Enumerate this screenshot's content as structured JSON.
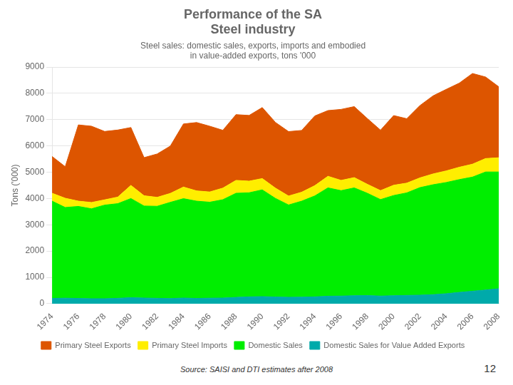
{
  "chart_data": {
    "type": "area",
    "stacked": true,
    "title": "Performance of the SA\nSteel industry",
    "subtitle": "Steel sales: domestic sales, exports, imports and embodied\nin value-added exports, tons '000",
    "ylabel": "Tons ('000)",
    "annotations": [
      "Source: SAISI and DTI estimates after 2008",
      "12"
    ],
    "x": [
      1974,
      1975,
      1976,
      1977,
      1978,
      1979,
      1980,
      1981,
      1982,
      1983,
      1984,
      1985,
      1986,
      1987,
      1988,
      1989,
      1990,
      1991,
      1992,
      1993,
      1994,
      1995,
      1996,
      1997,
      1998,
      1999,
      2000,
      2001,
      2002,
      2003,
      2004,
      2005,
      2006,
      2007,
      2008
    ],
    "series": [
      {
        "name": "Domestic Sales for Value Added Exports",
        "color": "#00aaaa",
        "values": [
          200,
          210,
          200,
          190,
          190,
          205,
          230,
          215,
          205,
          195,
          215,
          200,
          210,
          215,
          240,
          260,
          270,
          255,
          245,
          250,
          260,
          285,
          290,
          305,
          310,
          290,
          305,
          315,
          325,
          345,
          380,
          430,
          475,
          520,
          570
        ]
      },
      {
        "name": "Domestic Sales",
        "color": "#00ee00",
        "values": [
          3700,
          3450,
          3500,
          3420,
          3560,
          3600,
          3770,
          3500,
          3500,
          3660,
          3780,
          3700,
          3650,
          3740,
          3960,
          3960,
          4060,
          3750,
          3510,
          3650,
          3840,
          4120,
          4010,
          4100,
          3890,
          3670,
          3810,
          3900,
          4090,
          4180,
          4230,
          4290,
          4340,
          4490,
          4440
        ]
      },
      {
        "name": "Primary Steel Imports",
        "color": "#ffee00",
        "values": [
          300,
          350,
          200,
          240,
          200,
          250,
          500,
          390,
          340,
          340,
          440,
          390,
          390,
          440,
          490,
          440,
          430,
          390,
          340,
          340,
          390,
          440,
          390,
          390,
          340,
          340,
          390,
          370,
          370,
          410,
          440,
          470,
          490,
          510,
          540
        ]
      },
      {
        "name": "Primary Steel Exports",
        "color": "#dd5500",
        "values": [
          1400,
          1200,
          2900,
          2900,
          2600,
          2550,
          2200,
          1450,
          1650,
          1800,
          2400,
          2600,
          2500,
          2200,
          2500,
          2500,
          2700,
          2500,
          2450,
          2350,
          2650,
          2500,
          2700,
          2700,
          2500,
          2300,
          2650,
          2450,
          2750,
          2970,
          3100,
          3200,
          3450,
          3100,
          2700
        ]
      }
    ],
    "xlim": [
      1974,
      2008
    ],
    "xticks": [
      1974,
      1976,
      1978,
      1980,
      1982,
      1984,
      1986,
      1988,
      1990,
      1992,
      1994,
      1996,
      1998,
      2000,
      2002,
      2004,
      2006,
      2008
    ],
    "ylim": [
      0,
      9000
    ],
    "yticks": [
      0,
      1000,
      2000,
      3000,
      4000,
      5000,
      6000,
      7000,
      8000,
      9000
    ],
    "grid": "y",
    "legend": "bottom"
  }
}
